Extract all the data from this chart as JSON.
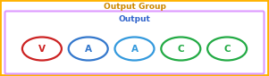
{
  "title_outer": "Output Group",
  "title_inner": "Output",
  "outer_box_color": "#FFB300",
  "inner_box_color": "#DD99FF",
  "bg_color": "#FFFFFF",
  "elements": [
    {
      "label": "V",
      "ellipse_color": "#CC2222",
      "text_color": "#CC2222"
    },
    {
      "label": "A",
      "ellipse_color": "#3377CC",
      "text_color": "#3377CC"
    },
    {
      "label": "A",
      "ellipse_color": "#3399DD",
      "text_color": "#3399DD"
    },
    {
      "label": "C",
      "ellipse_color": "#22AA44",
      "text_color": "#22AA44"
    },
    {
      "label": "C",
      "ellipse_color": "#22AA44",
      "text_color": "#22AA44"
    }
  ],
  "outer_title_color": "#CC8800",
  "inner_title_color": "#3366CC",
  "figsize": [
    3.01,
    0.85
  ],
  "dpi": 100
}
